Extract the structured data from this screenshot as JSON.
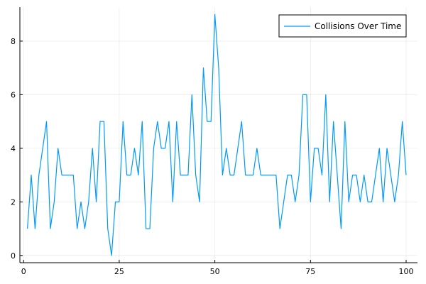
{
  "chart_data": {
    "type": "line",
    "title": "",
    "xlabel": "",
    "ylabel": "",
    "xlim": [
      -0.97,
      102.97
    ],
    "ylim": [
      -0.27,
      9.27
    ],
    "x_ticks": [
      0,
      25,
      50,
      75,
      100
    ],
    "x_tick_labels": [
      "0",
      "25",
      "50",
      "75",
      "100"
    ],
    "y_ticks": [
      0,
      2,
      4,
      6,
      8
    ],
    "y_tick_labels": [
      "0",
      "2",
      "4",
      "6",
      "8"
    ],
    "grid": true,
    "legend_position": "top-right",
    "series": [
      {
        "name": "Collisions Over Time",
        "color": "#009AFA",
        "x": [
          1,
          2,
          3,
          4,
          5,
          6,
          7,
          8,
          9,
          10,
          11,
          12,
          13,
          14,
          15,
          16,
          17,
          18,
          19,
          20,
          21,
          22,
          23,
          24,
          25,
          26,
          27,
          28,
          29,
          30,
          31,
          32,
          33,
          34,
          35,
          36,
          37,
          38,
          39,
          40,
          41,
          42,
          43,
          44,
          45,
          46,
          47,
          48,
          49,
          50,
          51,
          52,
          53,
          54,
          55,
          56,
          57,
          58,
          59,
          60,
          61,
          62,
          63,
          64,
          65,
          66,
          67,
          68,
          69,
          70,
          71,
          72,
          73,
          74,
          75,
          76,
          77,
          78,
          79,
          80,
          81,
          82,
          83,
          84,
          85,
          86,
          87,
          88,
          89,
          90,
          91,
          92,
          93,
          94,
          95,
          96,
          97,
          98,
          99,
          100
        ],
        "values": [
          1,
          3,
          1,
          3,
          4,
          5,
          1,
          2,
          4,
          3,
          3,
          3,
          3,
          1,
          2,
          1,
          2,
          4,
          2,
          5,
          5,
          1,
          0,
          2,
          2,
          5,
          3,
          3,
          4,
          3,
          5,
          1,
          1,
          4,
          5,
          4,
          4,
          5,
          2,
          5,
          3,
          3,
          3,
          6,
          3,
          2,
          7,
          5,
          5,
          9,
          7,
          3,
          4,
          3,
          3,
          4,
          5,
          3,
          3,
          3,
          4,
          3,
          3,
          3,
          3,
          3,
          1,
          2,
          3,
          3,
          2,
          3,
          6,
          6,
          2,
          4,
          4,
          3,
          6,
          2,
          5,
          3,
          1,
          5,
          2,
          3,
          3,
          2,
          3,
          2,
          2,
          3,
          4,
          2,
          4,
          3,
          2,
          3,
          5,
          3
        ]
      }
    ]
  }
}
